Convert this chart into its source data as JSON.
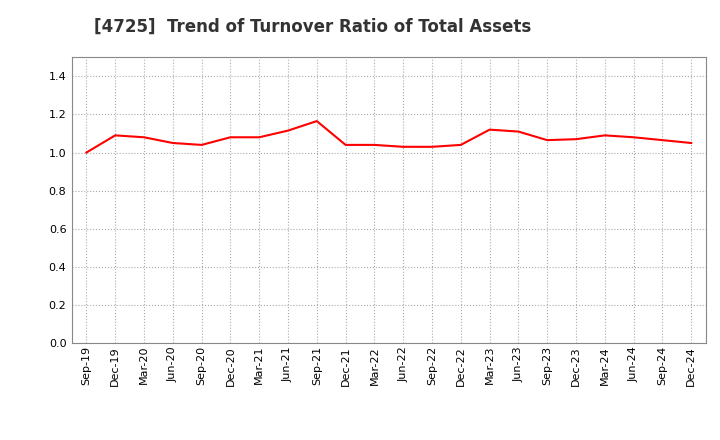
{
  "title": "[4725]  Trend of Turnover Ratio of Total Assets",
  "labels": [
    "Sep-19",
    "Dec-19",
    "Mar-20",
    "Jun-20",
    "Sep-20",
    "Dec-20",
    "Mar-21",
    "Jun-21",
    "Sep-21",
    "Dec-21",
    "Mar-22",
    "Jun-22",
    "Sep-22",
    "Dec-22",
    "Mar-23",
    "Jun-23",
    "Sep-23",
    "Dec-23",
    "Mar-24",
    "Jun-24",
    "Sep-24",
    "Dec-24"
  ],
  "values": [
    1.0,
    1.09,
    1.08,
    1.05,
    1.04,
    1.08,
    1.08,
    1.115,
    1.165,
    1.04,
    1.04,
    1.03,
    1.03,
    1.04,
    1.12,
    1.11,
    1.065,
    1.07,
    1.09,
    1.08,
    1.065,
    1.05
  ],
  "line_color": "#ff0000",
  "line_width": 1.5,
  "ylim": [
    0.0,
    1.5
  ],
  "yticks": [
    0.0,
    0.2,
    0.4,
    0.6,
    0.8,
    1.0,
    1.2,
    1.4
  ],
  "grid_color": "#aaaaaa",
  "background_color": "#ffffff",
  "title_fontsize": 12,
  "tick_fontsize": 8,
  "title_color": "#333333"
}
